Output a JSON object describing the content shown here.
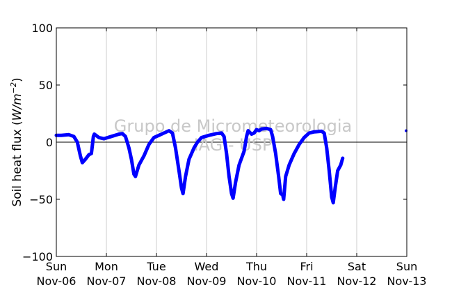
{
  "chart_data": {
    "type": "line",
    "title": "",
    "ylabel": "Soil heat flux (W/m⁻²)",
    "ylabel_parts": {
      "text": "Soil heat flux (",
      "math": "W/m",
      "exp": "−2",
      "close": ")"
    },
    "xlabel": "",
    "xlim": [
      0,
      7
    ],
    "ylim": [
      -100,
      100
    ],
    "x_unit": "days since Sun Nov-06",
    "grid": "vertical",
    "zero_line": true,
    "line_color": "#0000ff",
    "x_ticks": [
      {
        "x": 0,
        "day": "Sun",
        "date": "Nov-06"
      },
      {
        "x": 1,
        "day": "Mon",
        "date": "Nov-07"
      },
      {
        "x": 2,
        "day": "Tue",
        "date": "Nov-08"
      },
      {
        "x": 3,
        "day": "Wed",
        "date": "Nov-09"
      },
      {
        "x": 4,
        "day": "Thu",
        "date": "Nov-10"
      },
      {
        "x": 5,
        "day": "Fri",
        "date": "Nov-11"
      },
      {
        "x": 6,
        "day": "Sat",
        "date": "Nov-12"
      },
      {
        "x": 7,
        "day": "Sun",
        "date": "Nov-13"
      }
    ],
    "y_ticks": [
      100,
      50,
      0,
      -50,
      -100
    ],
    "watermark": [
      "Grupo de Micrometeorologia",
      "IAG - USP"
    ],
    "series": [
      {
        "name": "",
        "points": [
          [
            0.0,
            6
          ],
          [
            0.1,
            6
          ],
          [
            0.25,
            6.5
          ],
          [
            0.35,
            5
          ],
          [
            0.42,
            0
          ],
          [
            0.48,
            -12
          ],
          [
            0.52,
            -18
          ],
          [
            0.58,
            -15
          ],
          [
            0.65,
            -11
          ],
          [
            0.7,
            -10
          ],
          [
            0.72,
            -3
          ],
          [
            0.74,
            5
          ],
          [
            0.76,
            7
          ],
          [
            0.85,
            4
          ],
          [
            0.95,
            3
          ],
          [
            1.1,
            5
          ],
          [
            1.25,
            7
          ],
          [
            1.32,
            7.5
          ],
          [
            1.38,
            5
          ],
          [
            1.45,
            -5
          ],
          [
            1.5,
            -15
          ],
          [
            1.55,
            -28
          ],
          [
            1.58,
            -30
          ],
          [
            1.65,
            -20
          ],
          [
            1.75,
            -12
          ],
          [
            1.85,
            -2
          ],
          [
            1.95,
            4
          ],
          [
            2.05,
            6
          ],
          [
            2.15,
            8
          ],
          [
            2.25,
            10
          ],
          [
            2.32,
            8
          ],
          [
            2.38,
            -5
          ],
          [
            2.45,
            -25
          ],
          [
            2.5,
            -40
          ],
          [
            2.53,
            -45
          ],
          [
            2.58,
            -30
          ],
          [
            2.65,
            -15
          ],
          [
            2.75,
            -5
          ],
          [
            2.82,
            0
          ],
          [
            2.9,
            4
          ],
          [
            3.05,
            6
          ],
          [
            3.2,
            7.5
          ],
          [
            3.3,
            8
          ],
          [
            3.35,
            5
          ],
          [
            3.4,
            -10
          ],
          [
            3.45,
            -30
          ],
          [
            3.5,
            -45
          ],
          [
            3.53,
            -49
          ],
          [
            3.58,
            -35
          ],
          [
            3.65,
            -20
          ],
          [
            3.75,
            -8
          ],
          [
            3.8,
            5
          ],
          [
            3.83,
            10
          ],
          [
            3.9,
            7
          ],
          [
            3.95,
            8
          ],
          [
            4.0,
            11
          ],
          [
            4.05,
            10
          ],
          [
            4.1,
            11.5
          ],
          [
            4.2,
            12
          ],
          [
            4.28,
            11
          ],
          [
            4.32,
            5
          ],
          [
            4.38,
            -10
          ],
          [
            4.44,
            -30
          ],
          [
            4.48,
            -45
          ],
          [
            4.52,
            -46
          ],
          [
            4.54,
            -50
          ],
          [
            4.58,
            -30
          ],
          [
            4.65,
            -20
          ],
          [
            4.75,
            -10
          ],
          [
            4.85,
            -2
          ],
          [
            4.95,
            4
          ],
          [
            5.05,
            8
          ],
          [
            5.15,
            9
          ],
          [
            5.3,
            9.5
          ],
          [
            5.35,
            8
          ],
          [
            5.4,
            -5
          ],
          [
            5.45,
            -25
          ],
          [
            5.5,
            -48
          ],
          [
            5.53,
            -53
          ],
          [
            5.57,
            -40
          ],
          [
            5.62,
            -25
          ],
          [
            5.68,
            -20
          ],
          [
            5.72,
            -14
          ]
        ]
      }
    ],
    "edge_point": [
      7.0,
      10
    ]
  }
}
